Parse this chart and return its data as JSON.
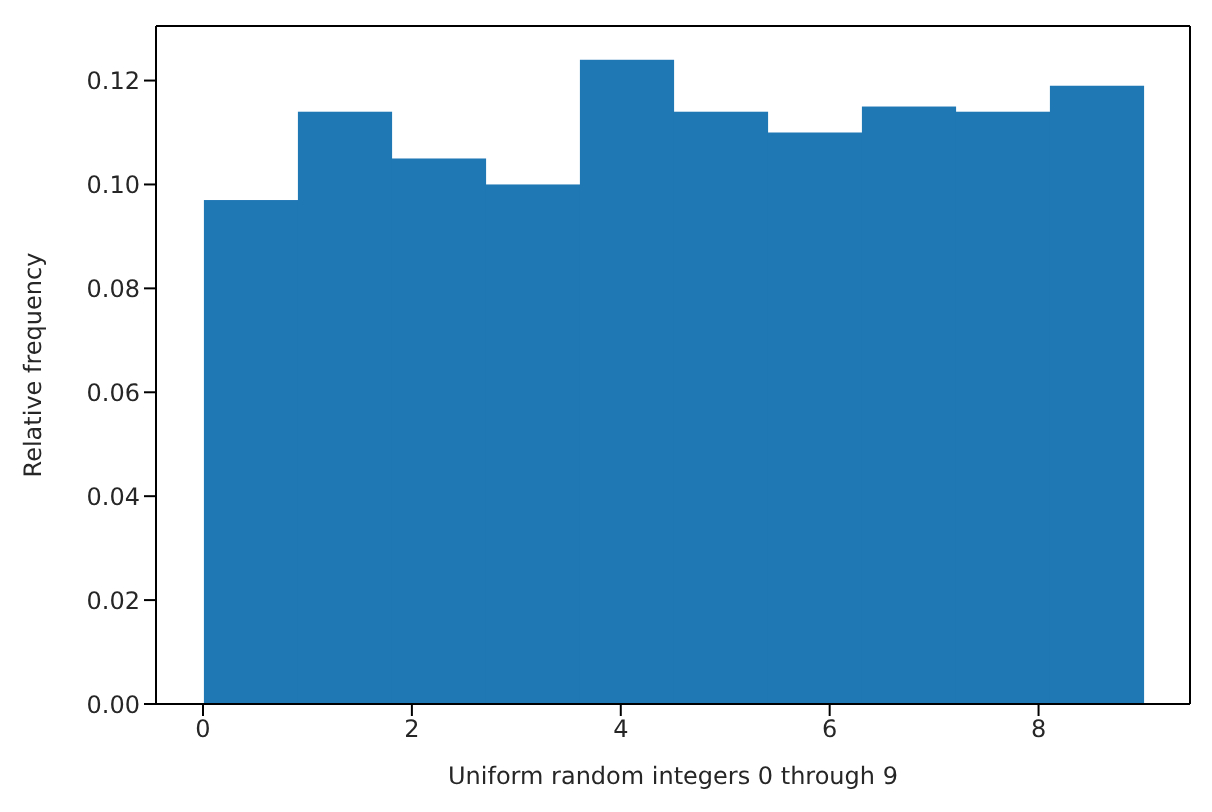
{
  "chart_data": {
    "type": "histogram",
    "xlabel": "Uniform random integers 0 through 9",
    "ylabel": "Relative frequency",
    "bins": [
      0,
      0.9,
      1.8,
      2.7,
      3.6,
      4.5,
      5.4,
      6.3,
      7.2,
      8.1,
      9
    ],
    "values": [
      0.097,
      0.114,
      0.105,
      0.1,
      0.124,
      0.114,
      0.11,
      0.115,
      0.114,
      0.119
    ],
    "color": "#1f77b4",
    "xlim": [
      -0.45,
      9.45
    ],
    "ylim": [
      0,
      0.1305
    ],
    "xticks": [
      0,
      2,
      4,
      6,
      8
    ],
    "yticks": [
      {
        "value": 0,
        "label": "0.00"
      },
      {
        "value": 0.02,
        "label": "0.02"
      },
      {
        "value": 0.04,
        "label": "0.04"
      },
      {
        "value": 0.06,
        "label": "0.06"
      },
      {
        "value": 0.08,
        "label": "0.08"
      },
      {
        "value": 0.1,
        "label": "0.10"
      },
      {
        "value": 0.12,
        "label": "0.12"
      }
    ],
    "grid": false,
    "legend": false
  }
}
